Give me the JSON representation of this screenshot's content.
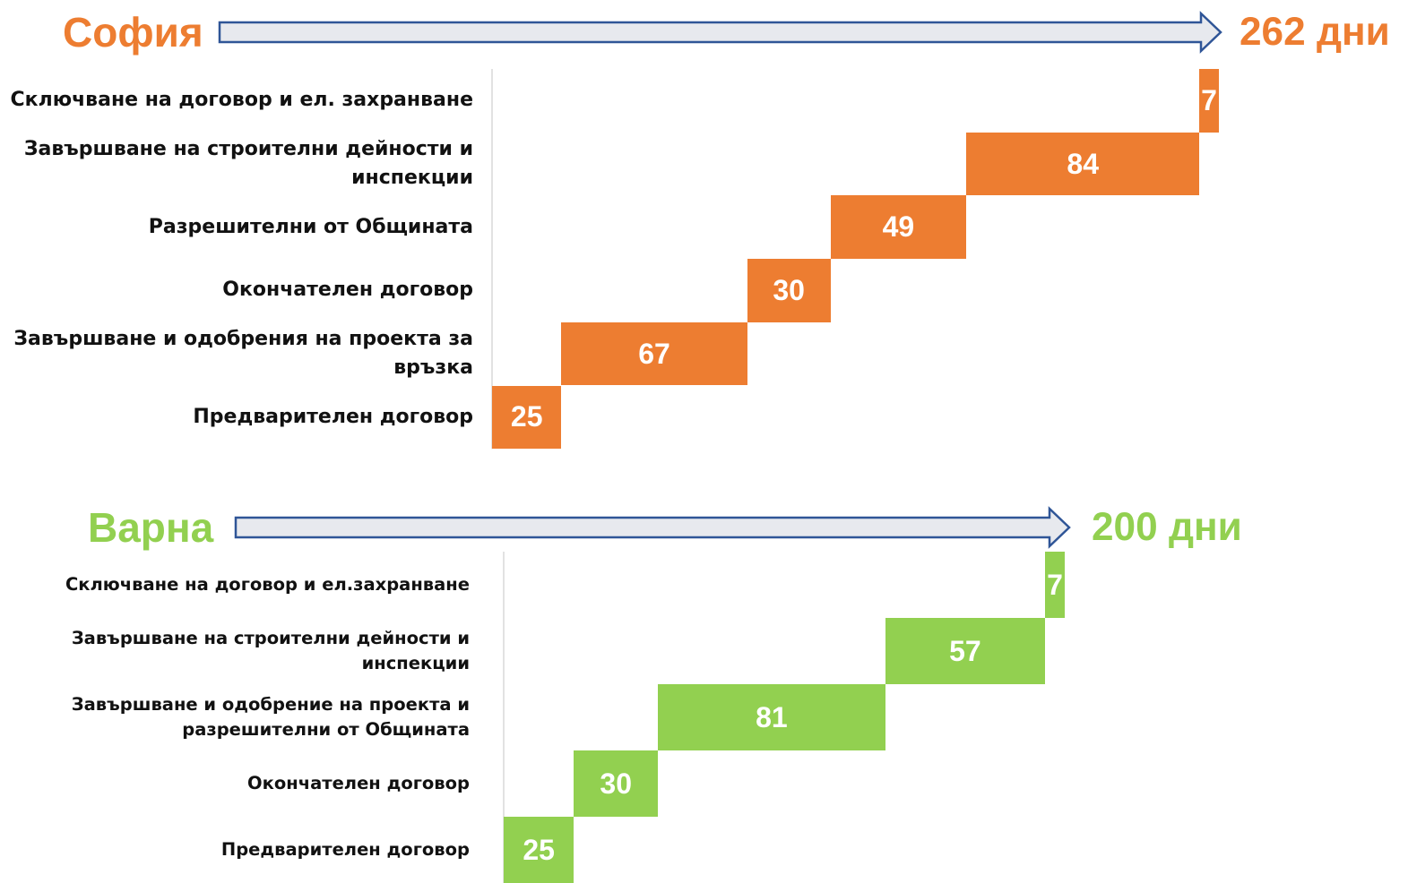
{
  "chart_data": [
    {
      "type": "waterfall",
      "title": "София",
      "total_label": "262 дни",
      "color": "#ed7d31",
      "categories": [
        "Сключване на договор и ел. захранване",
        "Завършване на строителни дейности и инспекции",
        "Разрешителни от Общината",
        "Окончателен договор",
        "Завършване и одобрения на проекта за връзка",
        "Предварителен договор"
      ],
      "values": [
        7,
        84,
        49,
        30,
        67,
        25
      ]
    },
    {
      "type": "waterfall",
      "title": "Варна",
      "total_label": "200 дни",
      "color": "#92d050",
      "categories": [
        "Сключване на договор и ел.захранване",
        "Завършване на строителни дейности и инспекции",
        "Завършване и одобрение на проекта и разрешителни от Общината",
        "Окончателен договор",
        "Предварителен договор"
      ],
      "values": [
        7,
        57,
        81,
        30,
        25
      ]
    }
  ]
}
